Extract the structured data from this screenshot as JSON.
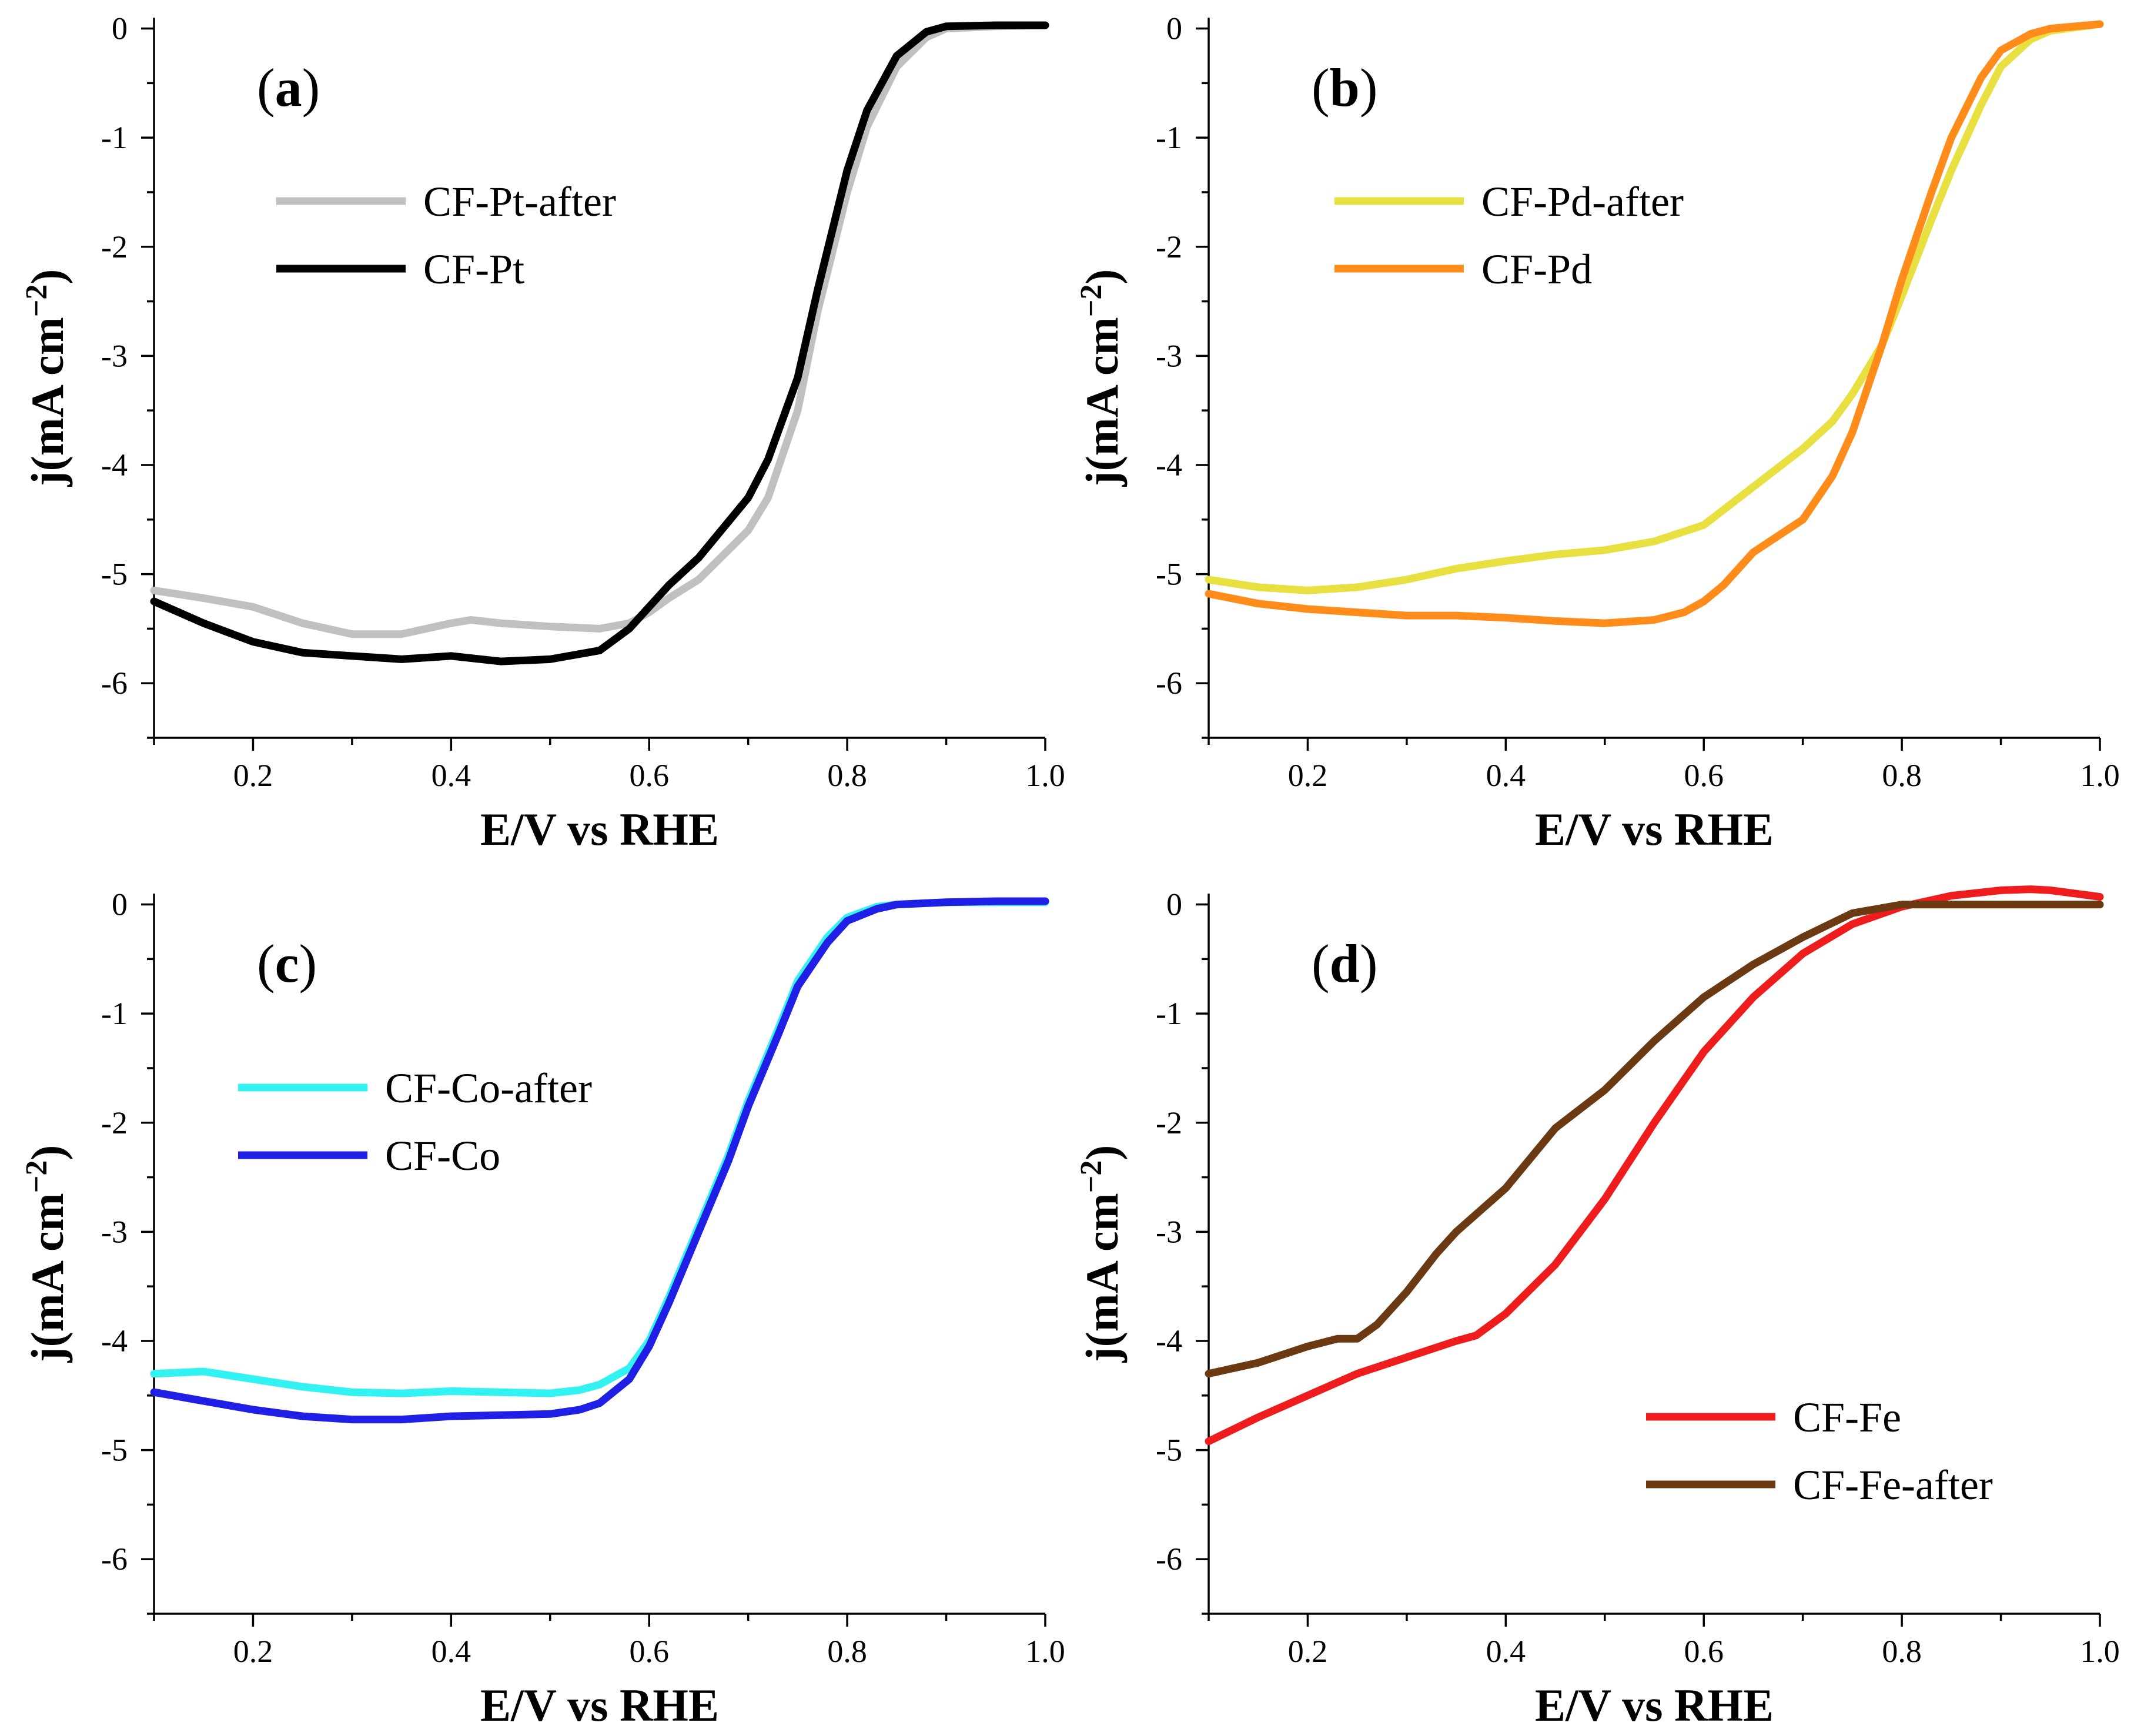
{
  "chart_data": [
    {
      "type": "line",
      "panel_label": "(a)",
      "xlabel": "E/V vs RHE",
      "ylabel": "j(mA cm−2)",
      "xlim": [
        0.1,
        1.0
      ],
      "ylim": [
        -6.5,
        0.1
      ],
      "xticks": [
        "0.2",
        "0.4",
        "0.6",
        "0.8",
        "1.0"
      ],
      "yticks": [
        "0",
        "-1",
        "-2",
        "-3",
        "-4",
        "-5",
        "-6"
      ],
      "legend_position": "upper-left",
      "series": [
        {
          "name": "CF-Pt-after",
          "color": "#c0c0c0",
          "x": [
            0.1,
            0.15,
            0.2,
            0.25,
            0.3,
            0.35,
            0.4,
            0.42,
            0.45,
            0.5,
            0.55,
            0.58,
            0.6,
            0.62,
            0.65,
            0.7,
            0.72,
            0.75,
            0.77,
            0.8,
            0.82,
            0.85,
            0.88,
            0.9,
            0.95,
            1.0
          ],
          "y": [
            -5.15,
            -5.22,
            -5.3,
            -5.45,
            -5.55,
            -5.55,
            -5.45,
            -5.42,
            -5.45,
            -5.48,
            -5.5,
            -5.45,
            -5.35,
            -5.22,
            -5.05,
            -4.6,
            -4.3,
            -3.5,
            -2.6,
            -1.5,
            -0.9,
            -0.35,
            -0.08,
            0.0,
            0.02,
            0.03
          ]
        },
        {
          "name": "CF-Pt",
          "color": "#000000",
          "x": [
            0.1,
            0.15,
            0.2,
            0.25,
            0.3,
            0.35,
            0.4,
            0.45,
            0.5,
            0.55,
            0.58,
            0.6,
            0.62,
            0.65,
            0.7,
            0.72,
            0.75,
            0.77,
            0.8,
            0.82,
            0.85,
            0.88,
            0.9,
            0.95,
            1.0
          ],
          "y": [
            -5.25,
            -5.45,
            -5.62,
            -5.72,
            -5.75,
            -5.78,
            -5.75,
            -5.8,
            -5.78,
            -5.7,
            -5.5,
            -5.3,
            -5.1,
            -4.85,
            -4.3,
            -3.95,
            -3.2,
            -2.4,
            -1.3,
            -0.75,
            -0.25,
            -0.03,
            0.02,
            0.03,
            0.03
          ]
        }
      ]
    },
    {
      "type": "line",
      "panel_label": "(b)",
      "xlabel": "E/V vs RHE",
      "ylabel": "j(mA cm−2)",
      "xlim": [
        0.1,
        1.0
      ],
      "ylim": [
        -6.5,
        0.1
      ],
      "xticks": [
        "0.2",
        "0.4",
        "0.6",
        "0.8",
        "1.0"
      ],
      "yticks": [
        "0",
        "-1",
        "-2",
        "-3",
        "-4",
        "-5",
        "-6"
      ],
      "legend_position": "upper-left",
      "series": [
        {
          "name": "CF-Pd-after",
          "color": "#e8e040",
          "x": [
            0.1,
            0.15,
            0.2,
            0.25,
            0.3,
            0.35,
            0.4,
            0.45,
            0.5,
            0.55,
            0.6,
            0.65,
            0.7,
            0.73,
            0.75,
            0.78,
            0.8,
            0.83,
            0.85,
            0.88,
            0.9,
            0.93,
            0.95,
            1.0
          ],
          "y": [
            -5.05,
            -5.12,
            -5.15,
            -5.12,
            -5.05,
            -4.95,
            -4.88,
            -4.82,
            -4.78,
            -4.7,
            -4.55,
            -4.2,
            -3.85,
            -3.6,
            -3.35,
            -2.9,
            -2.45,
            -1.75,
            -1.3,
            -0.7,
            -0.35,
            -0.1,
            -0.02,
            0.04
          ]
        },
        {
          "name": "CF-Pd",
          "color": "#ff8c1a",
          "x": [
            0.1,
            0.15,
            0.2,
            0.25,
            0.3,
            0.35,
            0.4,
            0.45,
            0.5,
            0.55,
            0.58,
            0.6,
            0.62,
            0.65,
            0.7,
            0.73,
            0.75,
            0.78,
            0.8,
            0.83,
            0.85,
            0.88,
            0.9,
            0.93,
            0.95,
            1.0
          ],
          "y": [
            -5.18,
            -5.27,
            -5.32,
            -5.35,
            -5.38,
            -5.38,
            -5.4,
            -5.43,
            -5.45,
            -5.42,
            -5.35,
            -5.25,
            -5.1,
            -4.8,
            -4.5,
            -4.1,
            -3.7,
            -2.9,
            -2.3,
            -1.5,
            -1.0,
            -0.45,
            -0.2,
            -0.05,
            0.0,
            0.04
          ]
        }
      ]
    },
    {
      "type": "line",
      "panel_label": "(c)",
      "xlabel": "E/V vs RHE",
      "ylabel": "j(mA cm−2)",
      "xlim": [
        0.1,
        1.0
      ],
      "ylim": [
        -6.5,
        0.1
      ],
      "xticks": [
        "0.2",
        "0.4",
        "0.6",
        "0.8",
        "1.0"
      ],
      "yticks": [
        "0",
        "-1",
        "-2",
        "-3",
        "-4",
        "-5",
        "-6"
      ],
      "legend_position": "center-left",
      "series": [
        {
          "name": "CF-Co-after",
          "color": "#33f2f2",
          "x": [
            0.1,
            0.15,
            0.2,
            0.25,
            0.3,
            0.35,
            0.4,
            0.45,
            0.5,
            0.53,
            0.55,
            0.58,
            0.6,
            0.62,
            0.65,
            0.68,
            0.7,
            0.73,
            0.75,
            0.78,
            0.8,
            0.83,
            0.85,
            0.9,
            0.95,
            1.0
          ],
          "y": [
            -4.3,
            -4.28,
            -4.35,
            -4.42,
            -4.47,
            -4.48,
            -4.46,
            -4.47,
            -4.48,
            -4.45,
            -4.4,
            -4.25,
            -4.0,
            -3.6,
            -2.95,
            -2.3,
            -1.8,
            -1.15,
            -0.7,
            -0.3,
            -0.12,
            -0.02,
            0.0,
            0.02,
            0.02,
            0.02
          ]
        },
        {
          "name": "CF-Co",
          "color": "#1f1fe6",
          "x": [
            0.1,
            0.15,
            0.2,
            0.25,
            0.3,
            0.35,
            0.4,
            0.45,
            0.5,
            0.53,
            0.55,
            0.58,
            0.6,
            0.62,
            0.65,
            0.68,
            0.7,
            0.73,
            0.75,
            0.78,
            0.8,
            0.83,
            0.85,
            0.9,
            0.95,
            1.0
          ],
          "y": [
            -4.47,
            -4.55,
            -4.63,
            -4.69,
            -4.72,
            -4.72,
            -4.69,
            -4.68,
            -4.67,
            -4.63,
            -4.57,
            -4.35,
            -4.05,
            -3.65,
            -3.0,
            -2.35,
            -1.85,
            -1.2,
            -0.75,
            -0.35,
            -0.15,
            -0.04,
            0.0,
            0.02,
            0.03,
            0.03
          ]
        }
      ]
    },
    {
      "type": "line",
      "panel_label": "(d)",
      "xlabel": "E/V vs RHE",
      "ylabel": "j(mA cm−2)",
      "xlim": [
        0.1,
        1.0
      ],
      "ylim": [
        -6.5,
        0.1
      ],
      "xticks": [
        "0.2",
        "0.4",
        "0.6",
        "0.8",
        "1.0"
      ],
      "yticks": [
        "0",
        "-1",
        "-2",
        "-3",
        "-4",
        "-5",
        "-6"
      ],
      "legend_position": "lower-right",
      "series": [
        {
          "name": "CF-Fe",
          "color": "#ee1c1c",
          "x": [
            0.1,
            0.15,
            0.2,
            0.25,
            0.3,
            0.35,
            0.37,
            0.4,
            0.45,
            0.5,
            0.55,
            0.6,
            0.65,
            0.7,
            0.75,
            0.8,
            0.85,
            0.9,
            0.93,
            0.95,
            1.0
          ],
          "y": [
            -4.92,
            -4.7,
            -4.5,
            -4.3,
            -4.15,
            -4.0,
            -3.95,
            -3.75,
            -3.3,
            -2.7,
            -2.0,
            -1.35,
            -0.85,
            -0.45,
            -0.18,
            -0.02,
            0.08,
            0.13,
            0.14,
            0.13,
            0.07
          ]
        },
        {
          "name": "CF-Fe-after",
          "color": "#6b3a12",
          "x": [
            0.1,
            0.15,
            0.2,
            0.23,
            0.25,
            0.27,
            0.3,
            0.33,
            0.35,
            0.4,
            0.45,
            0.5,
            0.55,
            0.6,
            0.65,
            0.7,
            0.75,
            0.8,
            0.85,
            0.9,
            0.95,
            1.0
          ],
          "y": [
            -4.3,
            -4.2,
            -4.05,
            -3.98,
            -3.98,
            -3.85,
            -3.55,
            -3.2,
            -3.0,
            -2.6,
            -2.05,
            -1.7,
            -1.25,
            -0.85,
            -0.55,
            -0.3,
            -0.08,
            0.0,
            0.0,
            0.0,
            0.0,
            0.0
          ]
        }
      ]
    }
  ]
}
